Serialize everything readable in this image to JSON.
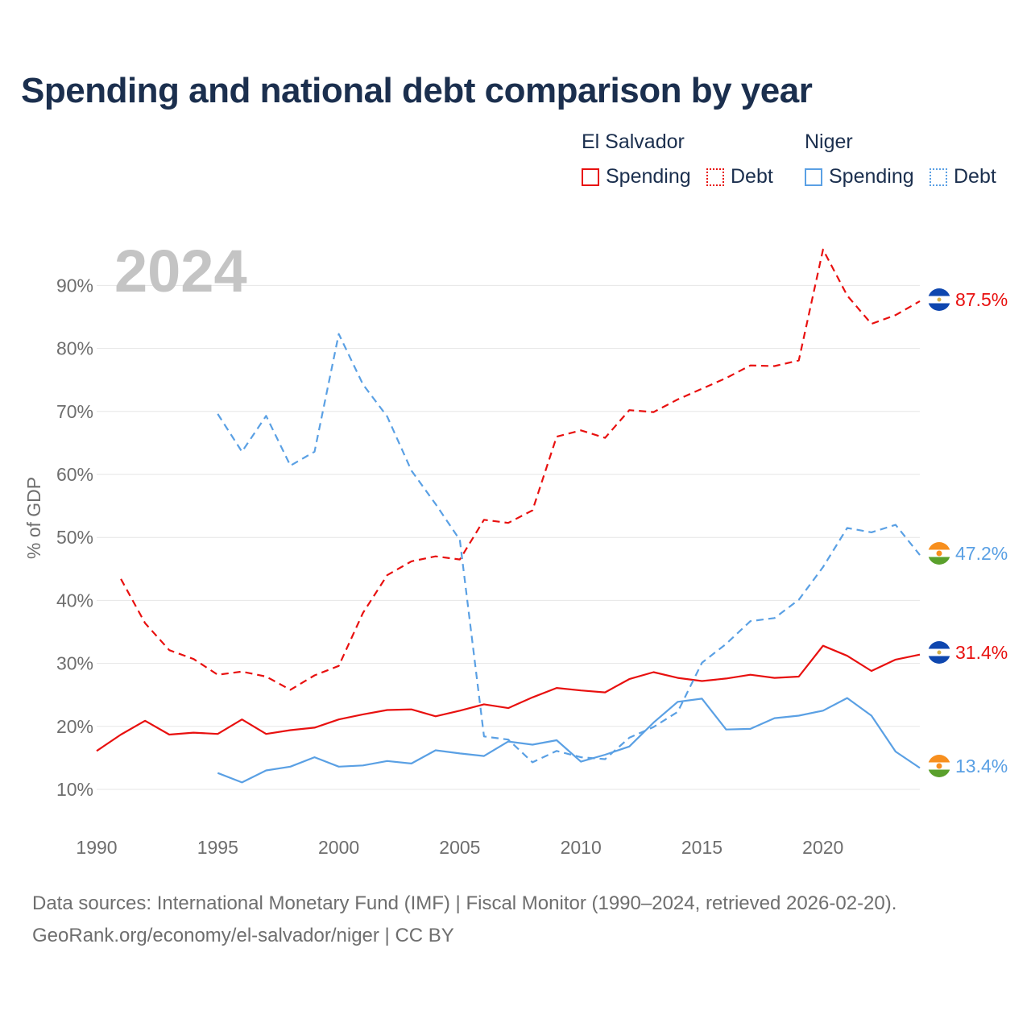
{
  "title": "Spending and national debt comparison by year",
  "legend": {
    "group1": "El Salvador",
    "group2": "Niger",
    "spending1": "Spending",
    "debt1": "Debt",
    "spending2": "Spending",
    "debt2": "Debt"
  },
  "year_label": "2024",
  "colors": {
    "el_salvador": "#e8100f",
    "niger": "#5aa0e4",
    "grid": "#e6e6e6",
    "axis_text": "#6e6e6e"
  },
  "end_labels": {
    "es_debt": "87.5%",
    "ne_debt": "47.2%",
    "es_spending": "31.4%",
    "ne_spending": "13.4%"
  },
  "source": {
    "line1": "Data sources: International Monetary Fund (IMF) | Fiscal Monitor (1990–2024, retrieved 2026-02-20).",
    "line2": "GeoRank.org/economy/el-salvador/niger | CC BY"
  },
  "chart_data": {
    "type": "line",
    "title": "Spending and national debt comparison by year",
    "xlabel": "",
    "ylabel": "% of GDP",
    "xlim": [
      1990,
      2024
    ],
    "ylim": [
      5,
      97
    ],
    "yticks": [
      10,
      20,
      30,
      40,
      50,
      60,
      70,
      80,
      90
    ],
    "ytick_labels": [
      "10%",
      "20%",
      "30%",
      "40%",
      "50%",
      "60%",
      "70%",
      "80%",
      "90%"
    ],
    "xticks": [
      1990,
      1995,
      2000,
      2005,
      2010,
      2015,
      2020
    ],
    "xtick_labels": [
      "1990",
      "1995",
      "2000",
      "2005",
      "2010",
      "2015",
      "2020"
    ],
    "series": [
      {
        "name": "El Salvador Spending",
        "style": "solid",
        "color": "#e8100f",
        "x": [
          1990,
          1991,
          1992,
          1993,
          1994,
          1995,
          1996,
          1997,
          1998,
          1999,
          2000,
          2001,
          2002,
          2003,
          2004,
          2005,
          2006,
          2007,
          2008,
          2009,
          2010,
          2011,
          2012,
          2013,
          2014,
          2015,
          2016,
          2017,
          2018,
          2019,
          2020,
          2021,
          2022,
          2023,
          2024
        ],
        "values": [
          16.1,
          18.7,
          20.9,
          18.7,
          19.0,
          18.8,
          21.1,
          18.8,
          19.4,
          19.8,
          21.1,
          21.9,
          22.6,
          22.7,
          21.6,
          22.5,
          23.5,
          22.9,
          24.6,
          26.1,
          25.7,
          25.4,
          27.5,
          28.6,
          27.7,
          27.2,
          27.6,
          28.2,
          27.7,
          27.9,
          32.8,
          31.2,
          28.8,
          30.6,
          31.4
        ]
      },
      {
        "name": "El Salvador Debt",
        "style": "dashed",
        "color": "#e8100f",
        "x": [
          1991,
          1992,
          1993,
          1994,
          1995,
          1996,
          1997,
          1998,
          1999,
          2000,
          2001,
          2002,
          2003,
          2004,
          2005,
          2006,
          2007,
          2008,
          2009,
          2010,
          2011,
          2012,
          2013,
          2014,
          2015,
          2016,
          2017,
          2018,
          2019,
          2020,
          2021,
          2022,
          2023,
          2024
        ],
        "values": [
          43.4,
          36.4,
          32.1,
          30.7,
          28.2,
          28.7,
          27.9,
          25.8,
          28.1,
          29.6,
          38.0,
          44.0,
          46.2,
          47.0,
          46.5,
          52.8,
          52.3,
          54.3,
          66.0,
          67.0,
          65.8,
          70.2,
          69.9,
          71.9,
          73.6,
          75.3,
          77.3,
          77.2,
          78.1,
          95.7,
          88.4,
          83.9,
          85.3,
          87.5
        ]
      },
      {
        "name": "Niger Spending",
        "style": "solid",
        "color": "#5aa0e4",
        "x": [
          1995,
          1996,
          1997,
          1998,
          1999,
          2000,
          2001,
          2002,
          2003,
          2004,
          2005,
          2006,
          2007,
          2008,
          2009,
          2010,
          2011,
          2012,
          2013,
          2014,
          2015,
          2016,
          2017,
          2018,
          2019,
          2020,
          2021,
          2022,
          2023,
          2024
        ],
        "values": [
          12.6,
          11.1,
          13.0,
          13.6,
          15.1,
          13.6,
          13.8,
          14.5,
          14.1,
          16.2,
          15.7,
          15.3,
          17.6,
          17.1,
          17.8,
          14.4,
          15.5,
          16.8,
          20.6,
          23.9,
          24.4,
          19.5,
          19.6,
          21.3,
          21.7,
          22.5,
          24.5,
          21.7,
          16.0,
          13.4
        ]
      },
      {
        "name": "Niger Debt",
        "style": "dashed",
        "color": "#5aa0e4",
        "x": [
          1995,
          1996,
          1997,
          1998,
          1999,
          2000,
          2001,
          2002,
          2003,
          2004,
          2005,
          2006,
          2007,
          2008,
          2009,
          2010,
          2011,
          2012,
          2013,
          2014,
          2015,
          2016,
          2017,
          2018,
          2019,
          2020,
          2021,
          2022,
          2023,
          2024
        ],
        "values": [
          69.6,
          63.6,
          69.3,
          61.4,
          63.6,
          82.3,
          74.3,
          69.2,
          60.6,
          55.3,
          49.6,
          18.4,
          17.9,
          14.3,
          16.1,
          15.1,
          14.8,
          18.2,
          19.9,
          22.3,
          30.1,
          33.1,
          36.7,
          37.2,
          40.1,
          45.3,
          51.5,
          50.8,
          52.0,
          47.2
        ]
      }
    ]
  }
}
